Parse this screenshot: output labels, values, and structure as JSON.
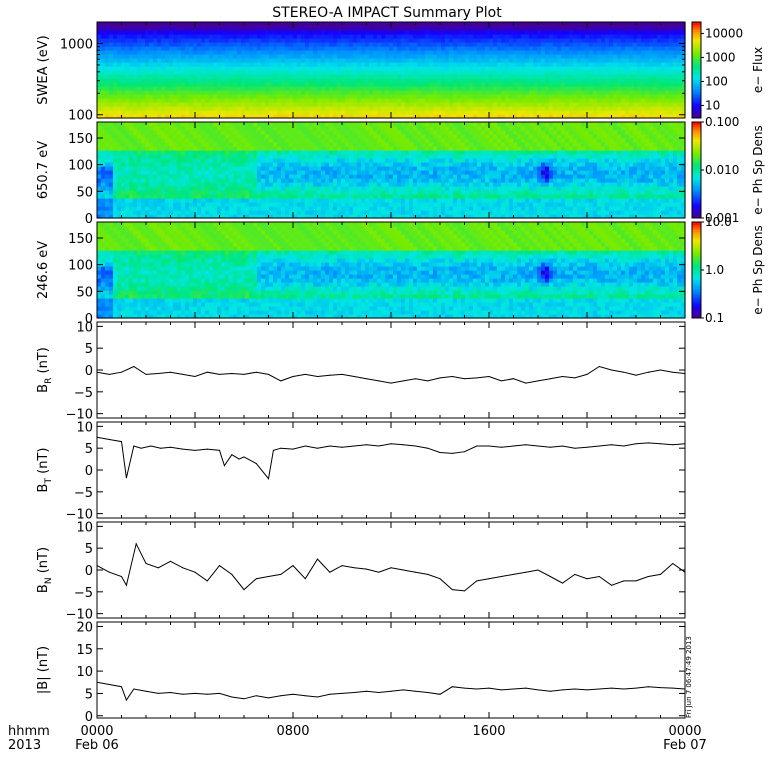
{
  "title": "STEREO-A IMPACT Summary Plot",
  "stamp": "Fri Jun  7 06:47:49 2013",
  "x_axis": {
    "left_labels": [
      "hhmm",
      "2013"
    ],
    "ticks": [
      {
        "t": 0,
        "top": "0000",
        "bottom": "Feb 06"
      },
      {
        "t": 8,
        "top": "0800",
        "bottom": ""
      },
      {
        "t": 16,
        "top": "1600",
        "bottom": ""
      },
      {
        "t": 24,
        "top": "0000",
        "bottom": "Feb 07"
      }
    ],
    "range_hours": [
      0,
      24
    ]
  },
  "chart_data": [
    {
      "type": "heatmap",
      "ylabel": "SWEA (eV)",
      "yscale": "log",
      "ylim": [
        90,
        2000
      ],
      "yticks": [
        100,
        1000
      ],
      "ytick_labels": [
        "100",
        "1000"
      ],
      "colorbar": {
        "label": "e− Flux",
        "scale": "log",
        "range": [
          3,
          30000
        ],
        "ticks": [
          10,
          100,
          1000,
          10000
        ],
        "tick_labels": [
          "10",
          "100",
          "1000",
          "10000"
        ]
      },
      "pattern": {
        "max_at": 120,
        "min_at": 1700,
        "log_min": 0.6,
        "log_max": 4.2
      }
    },
    {
      "type": "heatmap",
      "ylabel": "650.7 eV",
      "yscale": "linear",
      "ylim": [
        0,
        180
      ],
      "yticks": [
        0,
        50,
        100,
        150
      ],
      "ytick_labels": [
        "0",
        "50",
        "100",
        "150"
      ],
      "colorbar": {
        "label": "e− Ph Sp Dens",
        "scale": "log",
        "range": [
          0.001,
          0.1
        ],
        "ticks": [
          0.001,
          0.01,
          0.1
        ],
        "tick_labels": [
          "0.001",
          "0.010",
          "0.100"
        ]
      },
      "pattern": {
        "dip_center_hours": 18.2,
        "dip_pitch": 85
      }
    },
    {
      "type": "heatmap",
      "ylabel": "246.6 eV",
      "yscale": "linear",
      "ylim": [
        0,
        180
      ],
      "yticks": [
        0,
        50,
        100,
        150
      ],
      "ytick_labels": [
        "0",
        "50",
        "100",
        "150"
      ],
      "colorbar": {
        "label": "e− Ph Sp Dens",
        "scale": "log",
        "range": [
          0.1,
          10
        ],
        "ticks": [
          0.1,
          1,
          10
        ],
        "tick_labels": [
          "0.1",
          "1.0",
          "10.0"
        ]
      },
      "pattern": {
        "dip_center_hours": 18.2,
        "dip_pitch": 85
      }
    },
    {
      "type": "line",
      "ylabel": "B",
      "ylabel_sub": "R",
      "ylabel_unit": "(nT)",
      "ylim": [
        -11,
        11
      ],
      "yticks": [
        -10,
        -5,
        0,
        5,
        10
      ],
      "ytick_labels": [
        "−10",
        "−5",
        "0",
        "5",
        "10"
      ],
      "x": [
        0,
        0.5,
        1,
        1.5,
        2,
        2.5,
        3,
        3.5,
        4,
        4.5,
        5,
        5.5,
        6,
        6.5,
        7,
        7.5,
        8,
        8.5,
        9,
        9.5,
        10,
        10.5,
        11,
        11.5,
        12,
        12.5,
        13,
        13.5,
        14,
        14.5,
        15,
        15.5,
        16,
        16.5,
        17,
        17.5,
        18,
        18.5,
        19,
        19.5,
        20,
        20.5,
        21,
        21.5,
        22,
        22.5,
        23,
        23.5,
        24
      ],
      "y": [
        -0.5,
        -1,
        -0.5,
        0.8,
        -1,
        -0.8,
        -0.5,
        -1,
        -1.5,
        -0.5,
        -1,
        -0.8,
        -1,
        -0.5,
        -1,
        -2.5,
        -1.5,
        -1,
        -1.5,
        -1.2,
        -1,
        -1.5,
        -2,
        -2.5,
        -3,
        -2.5,
        -2,
        -2.5,
        -1.8,
        -1.5,
        -2,
        -1.8,
        -1.5,
        -2.5,
        -2,
        -3,
        -2.5,
        -2,
        -1.5,
        -1.8,
        -1,
        0.8,
        0,
        -0.5,
        -1.2,
        -0.5,
        0,
        -0.5,
        -0.8
      ]
    },
    {
      "type": "line",
      "ylabel": "B",
      "ylabel_sub": "T",
      "ylabel_unit": "(nT)",
      "ylim": [
        -11,
        11
      ],
      "yticks": [
        -10,
        -5,
        0,
        5,
        10
      ],
      "ytick_labels": [
        "−10",
        "−5",
        "0",
        "5",
        "10"
      ],
      "x": [
        0,
        0.5,
        1,
        1.2,
        1.5,
        1.8,
        2.2,
        2.6,
        3,
        3.5,
        4,
        4.5,
        5,
        5.2,
        5.5,
        5.8,
        6,
        6.5,
        7,
        7.2,
        7.5,
        8,
        8.5,
        9,
        9.5,
        10,
        10.5,
        11,
        11.5,
        12,
        12.5,
        13,
        13.5,
        14,
        14.5,
        15,
        15.5,
        16,
        16.5,
        17,
        17.5,
        18,
        18.5,
        19,
        19.5,
        20,
        20.5,
        21,
        21.5,
        22,
        22.5,
        23,
        23.5,
        24
      ],
      "y": [
        7.5,
        7,
        6.5,
        -1.8,
        5.5,
        5,
        5.5,
        5,
        5.2,
        4.8,
        4.5,
        4.8,
        4.5,
        1,
        3.5,
        2.5,
        3,
        1.5,
        -2,
        4.5,
        5,
        4.8,
        5.5,
        5,
        5.5,
        5.2,
        5.5,
        5.8,
        5.5,
        6,
        5.8,
        5.5,
        5,
        4,
        3.8,
        4.2,
        5.5,
        5.5,
        5.2,
        5.5,
        5.8,
        5.5,
        5.2,
        5.5,
        5,
        5.2,
        5.5,
        5.8,
        5.5,
        6,
        6.2,
        6,
        5.8,
        6
      ]
    },
    {
      "type": "line",
      "ylabel": "B",
      "ylabel_sub": "N",
      "ylabel_unit": "(nT)",
      "ylim": [
        -11,
        11
      ],
      "yticks": [
        -10,
        -5,
        0,
        5,
        10
      ],
      "ytick_labels": [
        "−10",
        "−5",
        "0",
        "5",
        "10"
      ],
      "x": [
        0,
        0.5,
        1,
        1.2,
        1.6,
        2,
        2.5,
        3,
        3.5,
        4,
        4.5,
        5,
        5.5,
        6,
        6.5,
        7,
        7.5,
        8,
        8.5,
        9,
        9.5,
        10,
        10.5,
        11,
        11.5,
        12,
        12.5,
        13,
        13.5,
        14,
        14.5,
        15,
        15.5,
        16,
        16.5,
        17,
        17.5,
        18,
        18.5,
        19,
        19.5,
        20,
        20.5,
        21,
        21.5,
        22,
        22.5,
        23,
        23.5,
        24
      ],
      "y": [
        1,
        -0.5,
        -1.5,
        -3.5,
        6,
        1.5,
        0.5,
        2,
        0.5,
        -0.5,
        -2.5,
        1,
        -1,
        -4.5,
        -2,
        -1.5,
        -1,
        1,
        -2,
        2.5,
        -0.5,
        1,
        0.5,
        0.2,
        -0.5,
        0.5,
        0,
        -0.5,
        -1,
        -2,
        -4.5,
        -4.8,
        -2.5,
        -2,
        -1.5,
        -1,
        -0.5,
        0,
        -1.5,
        -3,
        -1,
        -2,
        -1.5,
        -3.5,
        -2.5,
        -2.5,
        -1.5,
        -1,
        1.5,
        -0.5
      ]
    },
    {
      "type": "line",
      "ylabel": "|B|",
      "ylabel_sub": "",
      "ylabel_unit": "(nT)",
      "ylim": [
        -0.5,
        21
      ],
      "yticks": [
        0,
        5,
        10,
        15,
        20
      ],
      "ytick_labels": [
        "0",
        "5",
        "10",
        "15",
        "20"
      ],
      "x": [
        0,
        0.5,
        1,
        1.2,
        1.5,
        2,
        2.5,
        3,
        3.5,
        4,
        4.5,
        5,
        5.5,
        6,
        6.5,
        7,
        7.5,
        8,
        8.5,
        9,
        9.5,
        10,
        10.5,
        11,
        11.5,
        12,
        12.5,
        13,
        13.5,
        14,
        14.5,
        15,
        15.5,
        16,
        16.5,
        17,
        17.5,
        18,
        18.5,
        19,
        19.5,
        20,
        20.5,
        21,
        21.5,
        22,
        22.5,
        23,
        23.5,
        24
      ],
      "y": [
        7.5,
        7,
        6.5,
        3.5,
        6,
        5.5,
        5,
        5.2,
        4.8,
        5,
        4.8,
        5,
        4.2,
        3.8,
        4.5,
        4,
        4.5,
        4.8,
        4.5,
        4.2,
        4.8,
        5,
        5.2,
        5.5,
        5.2,
        5.5,
        5.8,
        5.5,
        5.2,
        4.8,
        6.5,
        6.2,
        6,
        6.2,
        5.8,
        6,
        6.2,
        5.8,
        5.5,
        5.8,
        6,
        5.8,
        6,
        6.2,
        6,
        6.2,
        6.5,
        6.3,
        6.2,
        6
      ]
    }
  ]
}
